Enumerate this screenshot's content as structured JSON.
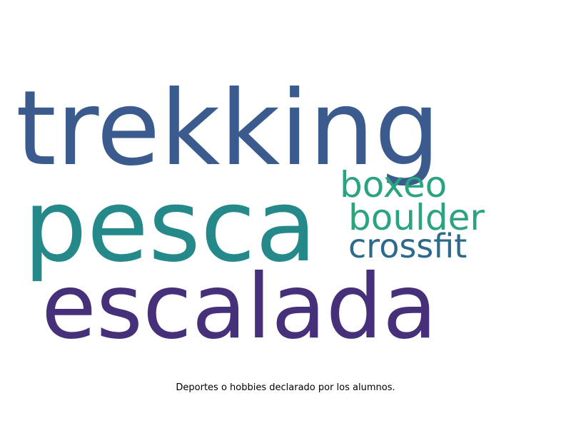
{
  "chart_data": {
    "type": "wordcloud",
    "words": [
      {
        "text": "trekking",
        "color": "#3b5b8f"
      },
      {
        "text": "pesca",
        "color": "#25898a"
      },
      {
        "text": "escalada",
        "color": "#46307a"
      },
      {
        "text": "boxeo",
        "color": "#2aa380"
      },
      {
        "text": "boulder",
        "color": "#2aa380"
      },
      {
        "text": "crossfit",
        "color": "#2c6a8c"
      }
    ]
  },
  "caption": "Deportes o hobbies declarado por los alumnos."
}
